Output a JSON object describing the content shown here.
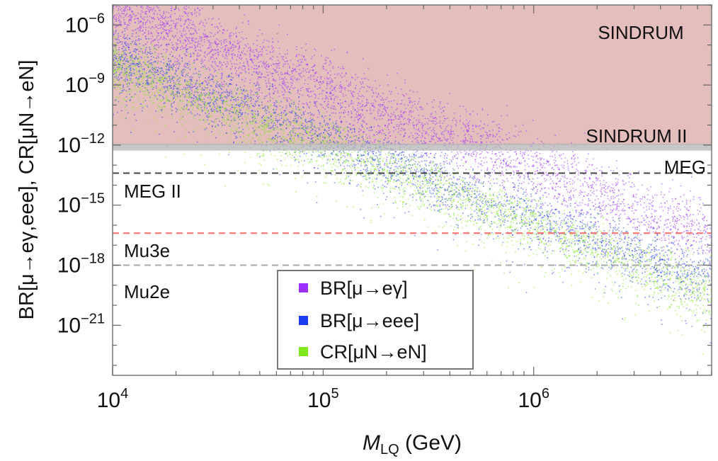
{
  "chart_data": {
    "type": "scatter",
    "xscale": "log",
    "yscale": "log",
    "xlim": [
      10000,
      7000000
    ],
    "ylim_exp": [
      -23.5,
      -5
    ],
    "xlabel_main": "M",
    "xlabel_sub": "LQ",
    "xlabel_unit": " (GeV)",
    "ylabel": "BR[μ→eγ,eee], CR[μN→eN]",
    "x_ticks": [
      {
        "value": 10000,
        "base": "10",
        "exp": "4"
      },
      {
        "value": 100000,
        "base": "10",
        "exp": "5"
      },
      {
        "value": 1000000,
        "base": "10",
        "exp": "6"
      }
    ],
    "y_ticks": [
      {
        "exp_value": -6,
        "base": "10",
        "exp": "−6"
      },
      {
        "exp_value": -9,
        "base": "10",
        "exp": "−9"
      },
      {
        "exp_value": -12,
        "base": "10",
        "exp": "−12"
      },
      {
        "exp_value": -15,
        "base": "10",
        "exp": "−15"
      },
      {
        "exp_value": -18,
        "base": "10",
        "exp": "−18"
      },
      {
        "exp_value": -21,
        "base": "10",
        "exp": "−21"
      }
    ],
    "series": [
      {
        "name": "BR[μ→eγ]",
        "color": "#9b30ff",
        "band_log10_at_1e4": [
          -6.6,
          -3.6
        ],
        "slope": -4,
        "halfwidth": 1.1
      },
      {
        "name": "BR[μ→eee]",
        "color": "#1c3cf0",
        "band_log10_at_1e4": [
          -8.9,
          -6.2
        ],
        "slope": -4,
        "halfwidth": 1.3
      },
      {
        "name": "CR[μN→eN]",
        "color": "#7fe81c",
        "band_log10_at_1e4": [
          -9.3,
          -6.7
        ],
        "slope": -4,
        "halfwidth": 1.2
      }
    ],
    "excluded_region": {
      "name": "SINDRUM",
      "from_log10": -12,
      "to_log10": -5,
      "color": "#c97b7b"
    },
    "limits": [
      {
        "name": "SINDRUM II",
        "log10": -12.1,
        "style": "band",
        "color": "#b5b5b5"
      },
      {
        "name": "MEG",
        "log10": -13.4,
        "style": "dashed",
        "color": "#444444"
      },
      {
        "name": "MEG II",
        "log10": -13.4,
        "style": "projection",
        "color": "#444444"
      },
      {
        "name": "Mu3e",
        "log10": -16.4,
        "style": "dashed",
        "color": "#ff6b6b"
      },
      {
        "name": "Mu2e",
        "log10": -18.0,
        "style": "dashed",
        "color": "#aaaaaa"
      }
    ],
    "annotations": {
      "sindrum": "SINDRUM",
      "sindrum2": "SINDRUM II",
      "meg": "MEG",
      "meg2": "MEG II",
      "mu3e": "Mu3e",
      "mu2e": "Mu2e"
    },
    "legend": {
      "position": "bottom-center",
      "entries": [
        {
          "label": "BR[μ→eγ]",
          "color": "#9b30ff"
        },
        {
          "label": "BR[μ→eee]",
          "color": "#1c3cf0"
        },
        {
          "label": "CR[μN→eN]",
          "color": "#7fe81c"
        }
      ]
    }
  }
}
